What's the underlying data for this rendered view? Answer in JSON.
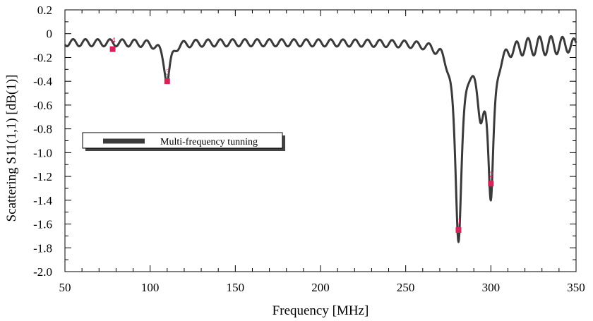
{
  "chart_data": {
    "type": "line",
    "title": "",
    "xlabel": "Frequency [MHz]",
    "ylabel": "Scattering S11(1,1) [dB(1)]",
    "xlim": [
      50,
      350
    ],
    "ylim": [
      -2.0,
      0.2
    ],
    "x_ticks": [
      50,
      100,
      150,
      200,
      250,
      300,
      350
    ],
    "x_tick_labels": [
      "50",
      "100",
      "150",
      "200",
      "250",
      "300",
      "350"
    ],
    "y_ticks": [
      0.2,
      0,
      -0.2,
      -0.4,
      -0.6,
      -0.8,
      -1.0,
      -1.2,
      -1.4,
      -1.6,
      -1.8,
      -2.0
    ],
    "y_tick_labels": [
      "0.2",
      "0",
      "-0.2",
      "-0.4",
      "-0.6",
      "-0.8",
      "-1.0",
      "-1.2",
      "-1.4",
      "-1.6",
      "-1.8",
      "-2.0"
    ],
    "grid": false,
    "legend_position": "middle-left",
    "series": [
      {
        "name": "Multi-frequency tunning",
        "color": "#3a3a3a",
        "resonances": [
          {
            "center": 110,
            "depth": 0.32,
            "width": 2.2
          },
          {
            "center": 281,
            "depth": 1.6,
            "width": 2.4
          },
          {
            "center": 294,
            "depth": 0.48,
            "width": 2.6
          },
          {
            "center": 300,
            "depth": 1.2,
            "width": 2.0
          }
        ]
      }
    ],
    "markers": [
      {
        "id": "4",
        "x": 78,
        "y": -0.13
      },
      {
        "id": "3",
        "x": 110,
        "y": -0.4
      },
      {
        "id": "1",
        "x": 281,
        "y": -1.65
      },
      {
        "id": "2",
        "x": 300,
        "y": -1.26
      }
    ],
    "marker_color": "#d6245a"
  }
}
